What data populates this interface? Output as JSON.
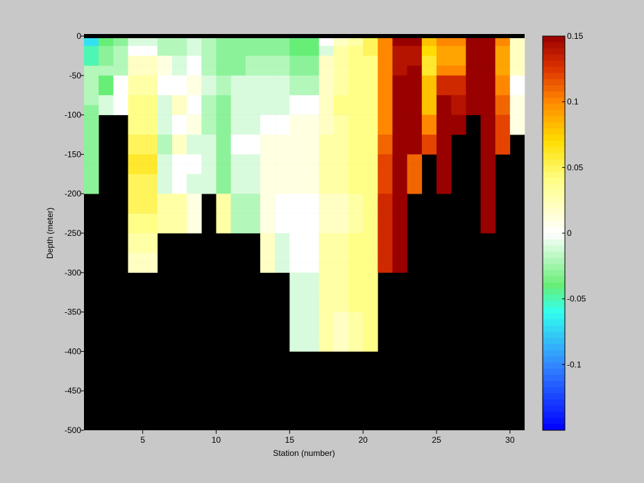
{
  "chart_data": {
    "type": "heatmap",
    "title": "",
    "xlabel": "Station (number)",
    "ylabel": "Depth (meter)",
    "xlim": [
      1,
      31
    ],
    "ylim": [
      -500,
      0
    ],
    "x_ticks": [
      5,
      10,
      15,
      20,
      25,
      30
    ],
    "y_ticks": [
      0,
      -50,
      -100,
      -150,
      -200,
      -250,
      -300,
      -350,
      -400,
      -450,
      -500
    ],
    "depth_bin_size": 25,
    "colorbar": {
      "clim": [
        -0.15,
        0.15
      ],
      "ticks": [
        0.15,
        0.1,
        0.05,
        0,
        -0.05,
        -0.1
      ],
      "colormap_stops": [
        {
          "value": -0.15,
          "color": "#0000ff"
        },
        {
          "value": -0.1,
          "color": "#3388ff"
        },
        {
          "value": -0.06,
          "color": "#33ffee"
        },
        {
          "value": -0.04,
          "color": "#66ee77"
        },
        {
          "value": 0.0,
          "color": "#ffffff"
        },
        {
          "value": 0.04,
          "color": "#ffff88"
        },
        {
          "value": 0.07,
          "color": "#ffdd00"
        },
        {
          "value": 0.1,
          "color": "#ff8800"
        },
        {
          "value": 0.125,
          "color": "#dd3300"
        },
        {
          "value": 0.15,
          "color": "#990000"
        }
      ]
    },
    "missing_color": "#000000",
    "stations": [
      {
        "station": 1,
        "max_depth": -200,
        "values": [
          -0.07,
          -0.05,
          -0.05,
          -0.02,
          -0.02,
          -0.02,
          -0.02,
          -0.03,
          -0.03,
          -0.03,
          -0.03,
          -0.03,
          -0.03,
          -0.03,
          -0.03,
          -0.03
        ]
      },
      {
        "station": 2,
        "max_depth": -100,
        "values": [
          -0.04,
          -0.03,
          -0.03,
          -0.02,
          -0.04,
          -0.04,
          -0.01,
          -0.01
        ]
      },
      {
        "station": 3,
        "max_depth": -100,
        "values": [
          -0.03,
          -0.02,
          -0.02,
          -0.02,
          0.0,
          0.0,
          0.0,
          0.0
        ]
      },
      {
        "station": 4,
        "max_depth": -300,
        "values": [
          -0.01,
          0.0,
          0.02,
          0.02,
          0.03,
          0.03,
          0.04,
          0.04,
          0.04,
          0.04,
          0.05,
          0.05,
          0.06,
          0.06,
          0.05,
          0.05,
          0.05,
          0.05,
          0.04,
          0.04,
          0.03,
          0.03,
          0.02,
          0.02
        ]
      },
      {
        "station": 5,
        "max_depth": -300,
        "values": [
          -0.01,
          0.0,
          0.02,
          0.02,
          0.03,
          0.03,
          0.04,
          0.04,
          0.04,
          0.04,
          0.05,
          0.05,
          0.06,
          0.06,
          0.05,
          0.05,
          0.05,
          0.05,
          0.04,
          0.04,
          0.03,
          0.03,
          0.02,
          0.02
        ]
      },
      {
        "station": 6,
        "max_depth": -250,
        "values": [
          -0.02,
          -0.02,
          0.01,
          0.01,
          0.0,
          0.0,
          -0.01,
          -0.01,
          -0.01,
          -0.01,
          -0.02,
          -0.02,
          -0.01,
          -0.01,
          -0.01,
          -0.01,
          0.03,
          0.03,
          0.03,
          0.03
        ]
      },
      {
        "station": 7,
        "max_depth": -250,
        "values": [
          -0.02,
          -0.02,
          -0.01,
          -0.01,
          0.0,
          0.0,
          0.02,
          0.02,
          0.0,
          0.0,
          0.02,
          0.02,
          0.0,
          0.0,
          0.0,
          0.0,
          0.03,
          0.03,
          0.03,
          0.03
        ]
      },
      {
        "station": 8,
        "max_depth": -250,
        "values": [
          -0.01,
          -0.01,
          0.0,
          0.0,
          0.01,
          0.01,
          0.0,
          0.0,
          0.01,
          0.01,
          -0.01,
          -0.01,
          0.0,
          0.0,
          -0.01,
          -0.01,
          0.01,
          0.01,
          0.01,
          0.01
        ]
      },
      {
        "station": 9,
        "max_depth": -200,
        "values": [
          -0.02,
          -0.02,
          -0.02,
          -0.02,
          -0.01,
          -0.01,
          -0.02,
          -0.02,
          -0.02,
          -0.02,
          -0.01,
          -0.01,
          -0.01,
          -0.01,
          -0.01,
          -0.01
        ]
      },
      {
        "station": 10,
        "max_depth": -250,
        "values": [
          -0.03,
          -0.03,
          -0.03,
          -0.03,
          -0.02,
          -0.02,
          -0.03,
          -0.03,
          -0.03,
          -0.03,
          -0.03,
          -0.03,
          -0.03,
          -0.03,
          -0.03,
          -0.03,
          0.03,
          0.03,
          0.03,
          0.03
        ]
      },
      {
        "station": 11,
        "max_depth": -250,
        "values": [
          -0.03,
          -0.03,
          -0.03,
          -0.03,
          -0.01,
          -0.01,
          -0.01,
          -0.01,
          -0.01,
          -0.01,
          0.0,
          0.0,
          -0.01,
          -0.01,
          -0.01,
          -0.01,
          -0.02,
          -0.02,
          -0.02,
          -0.02
        ]
      },
      {
        "station": 12,
        "max_depth": -250,
        "values": [
          -0.03,
          -0.03,
          -0.02,
          -0.02,
          -0.01,
          -0.01,
          -0.01,
          -0.01,
          -0.01,
          -0.01,
          0.0,
          0.0,
          -0.01,
          -0.01,
          -0.01,
          -0.01,
          -0.02,
          -0.02,
          -0.02,
          -0.02
        ]
      },
      {
        "station": 13,
        "max_depth": -300,
        "values": [
          -0.03,
          -0.03,
          -0.02,
          -0.02,
          -0.01,
          -0.01,
          -0.01,
          -0.01,
          0.0,
          0.0,
          0.01,
          0.01,
          0.01,
          0.01,
          0.01,
          0.01,
          0.01,
          0.01,
          0.01,
          0.01,
          0.02,
          0.02,
          0.02,
          0.02
        ]
      },
      {
        "station": 14,
        "max_depth": -300,
        "values": [
          -0.03,
          -0.03,
          -0.02,
          -0.02,
          -0.01,
          -0.01,
          -0.01,
          -0.01,
          0.0,
          0.0,
          0.01,
          0.01,
          0.01,
          0.01,
          0.01,
          0.01,
          0.0,
          0.0,
          0.0,
          0.0,
          -0.01,
          -0.01,
          -0.01,
          -0.01
        ]
      },
      {
        "station": 15,
        "max_depth": -400,
        "values": [
          -0.04,
          -0.04,
          -0.03,
          -0.03,
          -0.02,
          -0.02,
          0.0,
          0.0,
          0.01,
          0.01,
          0.01,
          0.01,
          0.01,
          0.01,
          0.01,
          0.01,
          0.0,
          0.0,
          0.0,
          0.0,
          0.0,
          0.0,
          0.0,
          0.0,
          -0.01,
          -0.01,
          -0.01,
          -0.01,
          -0.01,
          -0.01,
          -0.01,
          -0.01
        ]
      },
      {
        "station": 16,
        "max_depth": -400,
        "values": [
          -0.04,
          -0.04,
          -0.03,
          -0.03,
          -0.02,
          -0.02,
          0.0,
          0.0,
          0.01,
          0.01,
          0.01,
          0.01,
          0.01,
          0.01,
          0.01,
          0.01,
          0.0,
          0.0,
          0.0,
          0.0,
          0.0,
          0.0,
          0.0,
          0.0,
          -0.01,
          -0.01,
          -0.01,
          -0.01,
          -0.01,
          -0.01,
          -0.01,
          -0.01
        ]
      },
      {
        "station": 17,
        "max_depth": -400,
        "values": [
          0.0,
          -0.01,
          0.02,
          0.02,
          0.02,
          0.02,
          0.02,
          0.02,
          0.02,
          0.02,
          0.03,
          0.03,
          0.03,
          0.03,
          0.03,
          0.03,
          0.02,
          0.02,
          0.02,
          0.02,
          0.03,
          0.03,
          0.03,
          0.03,
          0.03,
          0.03,
          0.03,
          0.03,
          0.03,
          0.03,
          0.03,
          0.03
        ]
      },
      {
        "station": 18,
        "max_depth": -400,
        "values": [
          0.02,
          0.03,
          0.03,
          0.03,
          0.03,
          0.03,
          0.04,
          0.04,
          0.03,
          0.03,
          0.03,
          0.03,
          0.03,
          0.03,
          0.03,
          0.03,
          0.02,
          0.02,
          0.02,
          0.02,
          0.03,
          0.03,
          0.03,
          0.03,
          0.03,
          0.03,
          0.03,
          0.03,
          0.02,
          0.02,
          0.02,
          0.02
        ]
      },
      {
        "station": 19,
        "max_depth": -400,
        "values": [
          0.03,
          0.04,
          0.04,
          0.04,
          0.04,
          0.04,
          0.04,
          0.04,
          0.04,
          0.04,
          0.04,
          0.04,
          0.04,
          0.04,
          0.04,
          0.04,
          0.03,
          0.03,
          0.03,
          0.03,
          0.04,
          0.04,
          0.04,
          0.04,
          0.04,
          0.04,
          0.04,
          0.04,
          0.03,
          0.03,
          0.03,
          0.03
        ]
      },
      {
        "station": 20,
        "max_depth": -400,
        "values": [
          0.05,
          0.05,
          0.04,
          0.04,
          0.04,
          0.04,
          0.04,
          0.04,
          0.04,
          0.04,
          0.04,
          0.04,
          0.04,
          0.04,
          0.04,
          0.04,
          0.04,
          0.04,
          0.04,
          0.04,
          0.04,
          0.04,
          0.04,
          0.04,
          0.04,
          0.04,
          0.04,
          0.04,
          0.04,
          0.04,
          0.04,
          0.04
        ]
      },
      {
        "station": 21,
        "max_depth": -300,
        "values": [
          0.1,
          0.1,
          0.1,
          0.1,
          0.1,
          0.1,
          0.1,
          0.1,
          0.1,
          0.1,
          0.11,
          0.11,
          0.12,
          0.12,
          0.12,
          0.12,
          0.13,
          0.13,
          0.13,
          0.13,
          0.13,
          0.13,
          0.13,
          0.13
        ]
      },
      {
        "station": 22,
        "max_depth": -300,
        "values": [
          0.15,
          0.14,
          0.14,
          0.14,
          0.15,
          0.15,
          0.15,
          0.15,
          0.15,
          0.15,
          0.15,
          0.15,
          0.15,
          0.15,
          0.15,
          0.15,
          0.15,
          0.15,
          0.15,
          0.15,
          0.15,
          0.15,
          0.15,
          0.15
        ]
      },
      {
        "station": 23,
        "max_depth": -200,
        "values": [
          0.15,
          0.14,
          0.14,
          0.15,
          0.15,
          0.15,
          0.15,
          0.15,
          0.15,
          0.15,
          0.15,
          0.15,
          0.11,
          0.11,
          0.11,
          0.11
        ]
      },
      {
        "station": 24,
        "max_depth": -150,
        "values": [
          0.08,
          0.07,
          0.06,
          0.06,
          0.08,
          0.08,
          0.08,
          0.08,
          0.1,
          0.1,
          0.12,
          0.12
        ]
      },
      {
        "station": 25,
        "max_depth": -200,
        "values": [
          0.1,
          0.09,
          0.09,
          0.1,
          0.13,
          0.13,
          0.15,
          0.15,
          0.15,
          0.15,
          0.15,
          0.15,
          0.15,
          0.15,
          0.15,
          0.15
        ]
      },
      {
        "station": 26,
        "max_depth": -125,
        "values": [
          0.1,
          0.09,
          0.09,
          0.1,
          0.13,
          0.13,
          0.14,
          0.14,
          0.15,
          0.15
        ]
      },
      {
        "station": 27,
        "max_depth": -100,
        "values": [
          0.15,
          0.15,
          0.15,
          0.15,
          0.15,
          0.15,
          0.15,
          0.15
        ]
      },
      {
        "station": 28,
        "max_depth": -250,
        "values": [
          0.15,
          0.15,
          0.15,
          0.15,
          0.15,
          0.15,
          0.15,
          0.15,
          0.15,
          0.15,
          0.15,
          0.15,
          0.15,
          0.15,
          0.15,
          0.15,
          0.15,
          0.15,
          0.15,
          0.15
        ]
      },
      {
        "station": 29,
        "max_depth": -150,
        "values": [
          0.1,
          0.09,
          0.09,
          0.09,
          0.1,
          0.1,
          0.11,
          0.11,
          0.12,
          0.12,
          0.12,
          0.12
        ]
      },
      {
        "station": 30,
        "max_depth": -125,
        "values": [
          0.02,
          0.02,
          0.02,
          0.02,
          0.0,
          0.0,
          0.01,
          0.01,
          0.01,
          0.01
        ]
      }
    ]
  }
}
